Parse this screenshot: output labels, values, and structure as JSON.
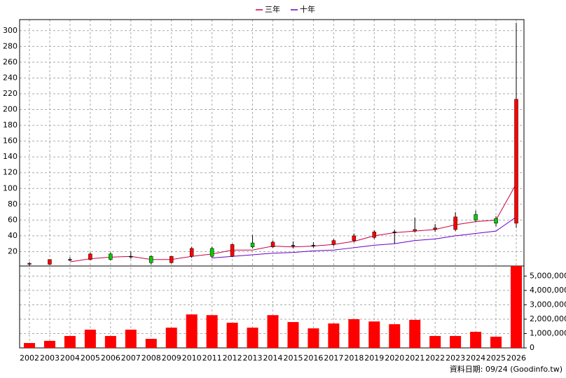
{
  "chart_data": {
    "type": "candlestick",
    "categories": [
      "2002",
      "2003",
      "2004",
      "2005",
      "2006",
      "2007",
      "2008",
      "2009",
      "2010",
      "2011",
      "2012",
      "2013",
      "2014",
      "2015",
      "2016",
      "2017",
      "2018",
      "2019",
      "2020",
      "2021",
      "2022",
      "2023",
      "2024",
      "2025",
      "2026"
    ],
    "open": [
      4,
      4,
      10,
      10,
      17,
      14,
      14,
      6,
      14,
      24,
      14,
      31,
      26,
      28,
      28,
      29,
      34,
      38,
      45,
      46,
      48,
      48,
      67,
      62,
      56
    ],
    "high": [
      7,
      10,
      13,
      19,
      19,
      20,
      15,
      14,
      26,
      26,
      30,
      41,
      34,
      33,
      32,
      36,
      43,
      47,
      48,
      63,
      55,
      70,
      72,
      65,
      310
    ],
    "low": [
      2,
      3,
      8,
      9,
      9,
      11,
      4,
      5,
      12,
      12,
      13,
      24,
      25,
      24,
      25,
      27,
      32,
      36,
      30,
      44,
      45,
      46,
      58,
      52,
      50
    ],
    "close": [
      5,
      10,
      10,
      17,
      10,
      14,
      6,
      14,
      24,
      14,
      29,
      26,
      32,
      28,
      28,
      34,
      40,
      45,
      45,
      48,
      50,
      64,
      60,
      56,
      213
    ],
    "up_color": "#ff0000",
    "down_color": "#00cc00",
    "series": [
      {
        "name": "三年",
        "color": "#cc0044",
        "values": [
          null,
          null,
          7,
          11,
          13,
          14,
          10,
          10,
          14,
          17,
          22,
          22,
          27,
          26,
          27,
          29,
          33,
          40,
          44,
          46,
          48,
          54,
          58,
          60,
          106
        ]
      },
      {
        "name": "十年",
        "color": "#6600cc",
        "values": [
          null,
          null,
          null,
          null,
          null,
          null,
          null,
          null,
          null,
          12,
          14,
          16,
          18,
          19,
          21,
          22,
          25,
          28,
          30,
          34,
          36,
          40,
          43,
          46,
          64
        ]
      }
    ],
    "ylim": [
      0,
      314
    ],
    "yticks": [
      20,
      40,
      60,
      80,
      100,
      120,
      140,
      160,
      180,
      200,
      220,
      240,
      260,
      280,
      300
    ],
    "volume": {
      "color": "#ff0000",
      "values": [
        340000,
        490000,
        830000,
        1270000,
        830000,
        1270000,
        630000,
        1410000,
        2330000,
        2280000,
        1750000,
        1410000,
        2280000,
        1800000,
        1360000,
        1700000,
        2000000,
        1840000,
        1650000,
        1950000,
        830000,
        830000,
        1120000,
        780000,
        5700000
      ],
      "ylim": [
        0,
        5700000
      ],
      "yticks": [
        0,
        {
          "value": 1000000,
          "label": "1,000,000"
        },
        {
          "value": 2000000,
          "label": "2,000,000"
        },
        {
          "value": 3000000,
          "label": "3,000,000"
        },
        {
          "value": 4000000,
          "label": "4,000,000"
        },
        {
          "value": 5000000,
          "label": "5,000,000"
        }
      ]
    },
    "grid": true,
    "footnote": "資料日期: 09/24 (Goodinfo.tw)"
  }
}
